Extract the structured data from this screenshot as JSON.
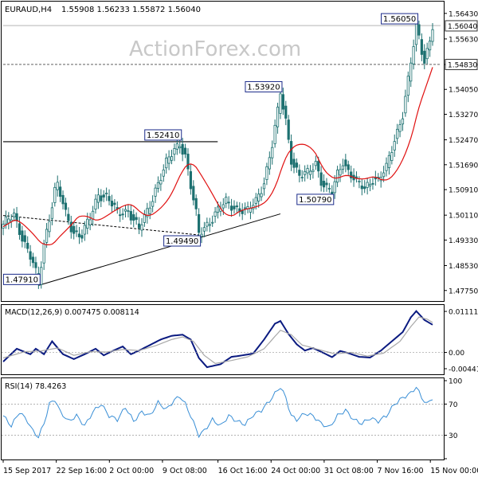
{
  "header": {
    "symbol": "EURAUD,H4",
    "ohlc": "1.55908 1.56233 1.55872 1.56040"
  },
  "watermark": "ActionForex.com",
  "colors": {
    "candle": "#1c7070",
    "ma": "#e01010",
    "macd": "#0a1a80",
    "signal": "#a8a8a8",
    "rsi": "#3a8fd6",
    "trendline": "#000000",
    "label_border": "#1a2a8a",
    "price_border": "#333333"
  },
  "chart_data": [
    {
      "id": "price",
      "type": "candlestick",
      "y_range": [
        1.4747,
        1.567
      ],
      "y_ticks": [
        "1.56430",
        "1.55630",
        "1.54830",
        "1.54050",
        "1.53270",
        "1.52470",
        "1.51690",
        "1.50910",
        "1.50110",
        "1.49330",
        "1.48530",
        "1.47750"
      ],
      "current_price": "1.56040",
      "reference_price": "1.54830",
      "close_anchors": [
        [
          0,
          1.4975
        ],
        [
          4,
          1.5015
        ],
        [
          8,
          1.492
        ],
        [
          11,
          1.4855
        ],
        [
          13,
          1.48
        ],
        [
          15,
          1.4925
        ],
        [
          17,
          1.5005
        ],
        [
          19,
          1.5085
        ],
        [
          20,
          1.51
        ],
        [
          23,
          1.5015
        ],
        [
          26,
          1.496
        ],
        [
          29,
          1.4945
        ],
        [
          32,
          1.5
        ],
        [
          35,
          1.508
        ],
        [
          38,
          1.507
        ],
        [
          42,
          1.5015
        ],
        [
          46,
          1.503
        ],
        [
          50,
          1.4965
        ],
        [
          53,
          1.502
        ],
        [
          56,
          1.5095
        ],
        [
          60,
          1.517
        ],
        [
          63,
          1.5215
        ],
        [
          65,
          1.524
        ],
        [
          67,
          1.52
        ],
        [
          69,
          1.51
        ],
        [
          71,
          1.501
        ],
        [
          72,
          1.4949
        ],
        [
          74,
          1.4975
        ],
        [
          78,
          1.5015
        ],
        [
          82,
          1.505
        ],
        [
          86,
          1.5035
        ],
        [
          90,
          1.502
        ],
        [
          93,
          1.5055
        ],
        [
          96,
          1.512
        ],
        [
          99,
          1.523
        ],
        [
          101,
          1.533
        ],
        [
          102,
          1.5392
        ],
        [
          104,
          1.531
        ],
        [
          106,
          1.519
        ],
        [
          109,
          1.513
        ],
        [
          112,
          1.514
        ],
        [
          115,
          1.518
        ],
        [
          117,
          1.512
        ],
        [
          119,
          1.509
        ],
        [
          121,
          1.5079
        ],
        [
          123,
          1.514
        ],
        [
          125,
          1.5185
        ],
        [
          127,
          1.515
        ],
        [
          130,
          1.511
        ],
        [
          133,
          1.5095
        ],
        [
          136,
          1.513
        ],
        [
          138,
          1.512
        ],
        [
          141,
          1.5155
        ],
        [
          144,
          1.525
        ],
        [
          147,
          1.533
        ],
        [
          149,
          1.543
        ],
        [
          151,
          1.554
        ],
        [
          152,
          1.5605
        ],
        [
          154,
          1.553
        ],
        [
          155,
          1.55
        ],
        [
          157,
          1.556
        ],
        [
          158,
          1.5604
        ]
      ],
      "annotations": [
        {
          "label": "1.47910",
          "bar": 13,
          "price": 1.4791
        },
        {
          "label": "1.52410",
          "bar": 65,
          "price": 1.5241
        },
        {
          "label": "1.49490",
          "bar": 72,
          "price": 1.4949
        },
        {
          "label": "1.53920",
          "bar": 102,
          "price": 1.5392
        },
        {
          "label": "1.50790",
          "bar": 121,
          "price": 1.5079
        },
        {
          "label": "1.56050",
          "bar": 152,
          "price": 1.5605
        }
      ],
      "horizontal_lines": [
        {
          "price": 1.5241,
          "from_bar": 0,
          "to_bar": 76,
          "style": "solid"
        },
        {
          "price": 1.5605,
          "from_bar": 0,
          "to_bar": 158,
          "style": "solid-thin"
        },
        {
          "price": 1.5483,
          "from_bar": 0,
          "to_bar": 158,
          "style": "dashed"
        }
      ],
      "trendlines": [
        {
          "from": [
            13,
            1.4791
          ],
          "to": [
            102,
            1.5015
          ],
          "style": "solid"
        },
        {
          "from": [
            0,
            1.501
          ],
          "to": [
            72,
            1.4949
          ],
          "style": "dashed"
        }
      ]
    },
    {
      "id": "macd",
      "type": "line",
      "label": "MACD(12,26,9) 0.007475 0.008114",
      "y_range": [
        -0.0055,
        0.0122
      ],
      "y_ticks": [
        "0.011111",
        "0.00",
        "-0.004419"
      ],
      "series": [
        {
          "name": "MACD",
          "anchors": [
            [
              0,
              -0.0025
            ],
            [
              5,
              0.001
            ],
            [
              10,
              -0.0005
            ],
            [
              12,
              0.001
            ],
            [
              15,
              -0.0005
            ],
            [
              18,
              0.003
            ],
            [
              22,
              -0.0005
            ],
            [
              26,
              -0.0018
            ],
            [
              30,
              -0.0005
            ],
            [
              34,
              0.001
            ],
            [
              37,
              -0.0008
            ],
            [
              40,
              0.0003
            ],
            [
              44,
              0.0016
            ],
            [
              47,
              -0.0005
            ],
            [
              50,
              0.0005
            ],
            [
              54,
              0.002
            ],
            [
              58,
              0.0035
            ],
            [
              62,
              0.0045
            ],
            [
              66,
              0.0048
            ],
            [
              69,
              0.0035
            ],
            [
              72,
              -0.0015
            ],
            [
              75,
              -0.004
            ],
            [
              80,
              -0.0032
            ],
            [
              84,
              -0.0012
            ],
            [
              88,
              -0.0008
            ],
            [
              92,
              -0.0003
            ],
            [
              96,
              0.0035
            ],
            [
              100,
              0.0078
            ],
            [
              102,
              0.0085
            ],
            [
              105,
              0.005
            ],
            [
              108,
              0.0022
            ],
            [
              111,
              0.0005
            ],
            [
              114,
              0.0012
            ],
            [
              118,
              -0.0002
            ],
            [
              121,
              -0.0013
            ],
            [
              124,
              0.0004
            ],
            [
              127,
              -0.0002
            ],
            [
              131,
              -0.0012
            ],
            [
              135,
              -0.0014
            ],
            [
              139,
              0.0005
            ],
            [
              143,
              0.003
            ],
            [
              147,
              0.0055
            ],
            [
              150,
              0.0095
            ],
            [
              152,
              0.0112
            ],
            [
              155,
              0.0088
            ],
            [
              158,
              0.0075
            ]
          ]
        },
        {
          "name": "Signal",
          "anchors": [
            [
              0,
              -0.0015
            ],
            [
              8,
              0.0002
            ],
            [
              14,
              0.0004
            ],
            [
              20,
              0.0012
            ],
            [
              26,
              -0.0008
            ],
            [
              32,
              0.0002
            ],
            [
              38,
              0.0001
            ],
            [
              44,
              0.0008
            ],
            [
              50,
              0.0005
            ],
            [
              56,
              0.0018
            ],
            [
              62,
              0.0035
            ],
            [
              66,
              0.0042
            ],
            [
              70,
              0.003
            ],
            [
              74,
              -0.0008
            ],
            [
              78,
              -0.003
            ],
            [
              84,
              -0.0022
            ],
            [
              90,
              -0.0012
            ],
            [
              96,
              0.001
            ],
            [
              102,
              0.006
            ],
            [
              106,
              0.0048
            ],
            [
              110,
              0.002
            ],
            [
              116,
              0.0008
            ],
            [
              122,
              -0.0004
            ],
            [
              128,
              0.0
            ],
            [
              134,
              -0.001
            ],
            [
              140,
              -0.0002
            ],
            [
              146,
              0.003
            ],
            [
              150,
              0.007
            ],
            [
              153,
              0.0096
            ],
            [
              156,
              0.009
            ],
            [
              158,
              0.0081
            ]
          ]
        }
      ]
    },
    {
      "id": "rsi",
      "type": "line",
      "label": "RSI(14) 78.4263",
      "y_range": [
        0,
        100
      ],
      "y_ticks": [
        "100",
        "70",
        "30",
        "0"
      ],
      "levels": [
        70,
        30
      ],
      "series": [
        {
          "name": "RSI",
          "anchors": [
            [
              0,
              55
            ],
            [
              3,
              42
            ],
            [
              6,
              60
            ],
            [
              9,
              48
            ],
            [
              11,
              35
            ],
            [
              13,
              28
            ],
            [
              15,
              45
            ],
            [
              17,
              70
            ],
            [
              19,
              76
            ],
            [
              21,
              60
            ],
            [
              24,
              48
            ],
            [
              27,
              55
            ],
            [
              30,
              42
            ],
            [
              33,
              60
            ],
            [
              36,
              70
            ],
            [
              39,
              55
            ],
            [
              42,
              50
            ],
            [
              45,
              66
            ],
            [
              48,
              48
            ],
            [
              51,
              60
            ],
            [
              54,
              55
            ],
            [
              57,
              72
            ],
            [
              60,
              63
            ],
            [
              63,
              75
            ],
            [
              65,
              80
            ],
            [
              67,
              70
            ],
            [
              69,
              55
            ],
            [
              71,
              38
            ],
            [
              72,
              30
            ],
            [
              74,
              36
            ],
            [
              77,
              50
            ],
            [
              80,
              42
            ],
            [
              83,
              55
            ],
            [
              86,
              48
            ],
            [
              89,
              44
            ],
            [
              92,
              56
            ],
            [
              95,
              62
            ],
            [
              98,
              74
            ],
            [
              101,
              88
            ],
            [
              102,
              92
            ],
            [
              104,
              78
            ],
            [
              106,
              55
            ],
            [
              108,
              50
            ],
            [
              111,
              58
            ],
            [
              114,
              55
            ],
            [
              117,
              45
            ],
            [
              120,
              40
            ],
            [
              123,
              55
            ],
            [
              126,
              62
            ],
            [
              129,
              50
            ],
            [
              132,
              45
            ],
            [
              135,
              52
            ],
            [
              138,
              48
            ],
            [
              141,
              55
            ],
            [
              144,
              70
            ],
            [
              147,
              78
            ],
            [
              150,
              84
            ],
            [
              152,
              92
            ],
            [
              154,
              78
            ],
            [
              156,
              70
            ],
            [
              158,
              78
            ]
          ]
        }
      ]
    }
  ],
  "x_axis": {
    "labels": [
      {
        "text": "15 Sep 2017",
        "bar": 0
      },
      {
        "text": "22 Sep 16:00",
        "bar": 22
      },
      {
        "text": "2 Oct 00:00",
        "bar": 44
      },
      {
        "text": "9 Oct 08:00",
        "bar": 66
      },
      {
        "text": "16 Oct 16:00",
        "bar": 89
      },
      {
        "text": "24 Oct 00:00",
        "bar": 111
      },
      {
        "text": "31 Oct 08:00",
        "bar": 133
      },
      {
        "text": "7 Nov 16:00",
        "bar": 155
      },
      {
        "text": "15 Nov 00:00",
        "bar": 177
      }
    ]
  }
}
